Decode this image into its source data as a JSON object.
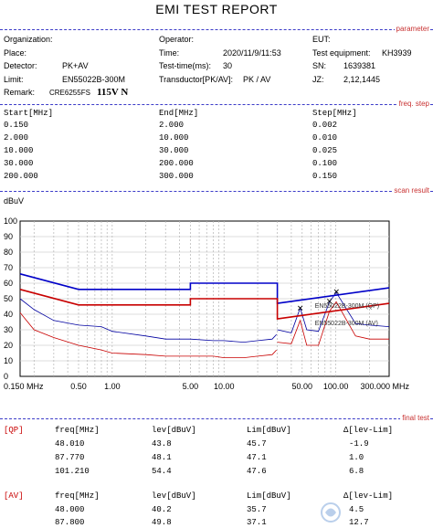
{
  "title": "EMI TEST REPORT",
  "sections": {
    "parameter": "parameter",
    "freq_step": "freq. step",
    "scan_result": "scan result",
    "final_test": "final test"
  },
  "params": {
    "organization_label": "Organization:",
    "place_label": "Place:",
    "detector_label": "Detector:",
    "detector_value": "PK+AV",
    "limit_label": "Limit:",
    "limit_value": "EN55022B-300M",
    "remark_label": "Remark:",
    "remark_value": "CRE6255FS",
    "remark_value2": "115V N",
    "operator_label": "Operator:",
    "time_label": "Time:",
    "time_value": "2020/11/9/11:53",
    "testtime_label": "Test-time(ms):",
    "testtime_value": "30",
    "transductor_label": "Transductor[PK/AV]:",
    "transductor_value": "PK  /  AV",
    "eut_label": "EUT:",
    "equipment_label": "Test equipment:",
    "equipment_value": "KH3939",
    "sn_label": "SN:",
    "sn_value": "1639381",
    "jz_label": "JZ:",
    "jz_value": "2,12,1445"
  },
  "freq_table": {
    "headers": [
      "Start[MHz]",
      "End[MHz]",
      "Step[MHz]"
    ],
    "rows": [
      [
        "0.150",
        "2.000",
        "0.002"
      ],
      [
        "2.000",
        "10.000",
        "0.010"
      ],
      [
        "10.000",
        "30.000",
        "0.025"
      ],
      [
        "30.000",
        "200.000",
        "0.100"
      ],
      [
        "200.000",
        "300.000",
        "0.150"
      ]
    ]
  },
  "chart_data": {
    "type": "line",
    "ylabel": "dBuV",
    "xscale": "log",
    "xlim": [
      0.15,
      300
    ],
    "ylim": [
      0,
      100
    ],
    "y_ticks": [
      "100",
      "90",
      "80",
      "70",
      "60",
      "50",
      "40",
      "30",
      "20",
      "10",
      "0"
    ],
    "x_tick_labels": [
      {
        "x": 0.15,
        "label": "0.150 MHz"
      },
      {
        "x": 0.5,
        "label": "0.50"
      },
      {
        "x": 1,
        "label": "1.00"
      },
      {
        "x": 5,
        "label": "5.00"
      },
      {
        "x": 10,
        "label": "10.00"
      },
      {
        "x": 50,
        "label": "50.00"
      },
      {
        "x": 100,
        "label": "100.00"
      },
      {
        "x": 300,
        "label": "300.000 MHz"
      }
    ],
    "limits": [
      {
        "color": "#0000c8",
        "x": [
          0.15,
          0.5,
          5,
          5,
          30,
          30,
          300
        ],
        "y": [
          66,
          56,
          56,
          60,
          60,
          47,
          57
        ]
      },
      {
        "color": "#c80000",
        "x": [
          0.15,
          0.5,
          5,
          5,
          30,
          30,
          300
        ],
        "y": [
          56,
          46,
          46,
          50,
          50,
          37,
          47
        ]
      }
    ],
    "traces": [
      {
        "color": "#0000a0",
        "x": [
          0.15,
          0.2,
          0.3,
          0.5,
          0.8,
          1,
          2,
          3,
          5,
          8,
          10,
          15,
          20,
          27,
          29.5
        ],
        "y": [
          50,
          43,
          36,
          33,
          32,
          29,
          26,
          24,
          24,
          23,
          23,
          22,
          23,
          24,
          27
        ]
      },
      {
        "color": "#c80000",
        "x": [
          0.15,
          0.2,
          0.3,
          0.5,
          0.8,
          1,
          2,
          3,
          5,
          8,
          10,
          15,
          20,
          27,
          29.5
        ],
        "y": [
          41,
          30,
          25,
          20,
          17,
          15,
          14,
          13,
          13,
          13,
          12,
          12,
          13,
          14,
          17
        ]
      },
      {
        "color": "#c80000",
        "x": [
          30,
          40,
          48,
          55,
          70,
          87.8,
          101,
          150,
          200,
          300
        ],
        "y": [
          22,
          21,
          36,
          20,
          20,
          42,
          48,
          26,
          24,
          24
        ]
      },
      {
        "color": "#0000a0",
        "x": [
          30,
          40,
          48,
          55,
          70,
          87.8,
          101,
          150,
          200,
          300
        ],
        "y": [
          30,
          28,
          44,
          30,
          29,
          48,
          54,
          34,
          33,
          32
        ]
      }
    ],
    "markers": [
      {
        "x": 48.01,
        "y": 43.8
      },
      {
        "x": 87.77,
        "y": 48.1
      },
      {
        "x": 101.21,
        "y": 54.4
      }
    ],
    "annotations": [
      {
        "x": 110,
        "y": 44,
        "text": "EN55022B-300M (QP)"
      },
      {
        "x": 110,
        "y": 33,
        "text": "EN55022B-300M (AV)"
      }
    ]
  },
  "final_test": {
    "headers": [
      "freq[MHz]",
      "lev[dBuV]",
      "Lim[dBuV]",
      "Δ[lev-Lim]"
    ],
    "qp_label": "[QP]",
    "qp_rows": [
      [
        "48.010",
        "43.8",
        "45.7",
        "-1.9"
      ],
      [
        "87.770",
        "48.1",
        "47.1",
        "1.0"
      ],
      [
        "101.210",
        "54.4",
        "47.6",
        "6.8"
      ]
    ],
    "av_label": "[AV]",
    "av_rows": [
      [
        "48.000",
        "40.2",
        "35.7",
        "4.5"
      ],
      [
        "87.800",
        "49.8",
        "37.1",
        "12.7"
      ]
    ]
  }
}
